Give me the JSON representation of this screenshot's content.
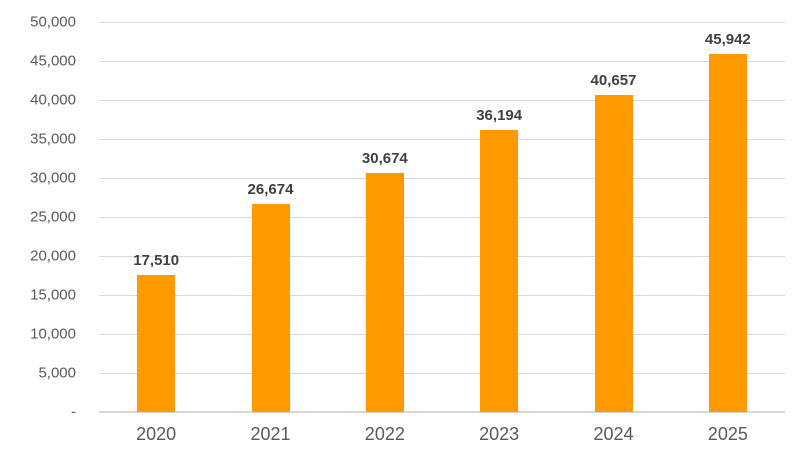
{
  "chart_data": {
    "type": "bar",
    "title": "",
    "xlabel": "",
    "ylabel": "",
    "categories": [
      "2020",
      "2021",
      "2022",
      "2023",
      "2024",
      "2025"
    ],
    "values": [
      17510,
      26674,
      30674,
      36194,
      40657,
      45942
    ],
    "data_labels": [
      "17,510",
      "26,674",
      "30,674",
      "36,194",
      "40,657",
      "45,942"
    ],
    "ylim": [
      0,
      50000
    ],
    "ytick_step": 5000,
    "ytick_labels_top_to_bottom": [
      "50,000",
      "45,000",
      "40,000",
      "35,000",
      "30,000",
      "25,000",
      "20,000",
      "15,000",
      "10,000",
      "5,000",
      "-"
    ],
    "grid": true,
    "legend": "none",
    "colors": {
      "bar": "#FF9900",
      "gridline": "#D9D9D9",
      "axis_line": "#D6D6D6",
      "tick_label": "#595959",
      "data_label": "#404040",
      "background": "#FFFFFF"
    }
  }
}
